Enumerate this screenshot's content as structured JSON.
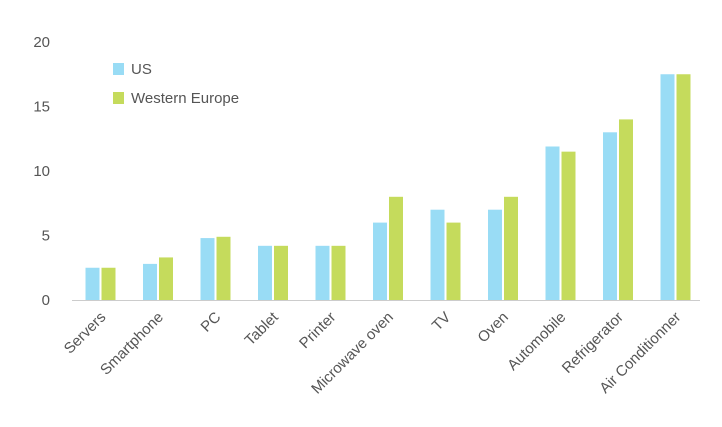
{
  "chart_data": {
    "type": "bar",
    "title": "",
    "xlabel": "",
    "ylabel": "",
    "categories": [
      "Servers",
      "Smartphone",
      "PC",
      "Tablet",
      "Printer",
      "Microwave oven",
      "TV",
      "Oven",
      "Automobile",
      "Refrigerator",
      "Air Conditionner"
    ],
    "series": [
      {
        "name": "US",
        "color": "#99dcf5",
        "values": [
          2.5,
          2.8,
          4.8,
          4.2,
          4.2,
          6.0,
          7.0,
          7.0,
          11.9,
          13.0,
          17.5
        ]
      },
      {
        "name": "Western Europe",
        "color": "#c5db5c",
        "values": [
          2.5,
          3.3,
          4.9,
          4.2,
          4.2,
          8.0,
          6.0,
          8.0,
          11.5,
          14.0,
          17.5
        ]
      }
    ],
    "ylim": [
      0,
      20
    ],
    "yticks": [
      0,
      5,
      10,
      15,
      20
    ],
    "grid": false,
    "legend": "top-left",
    "axis_color": "#cccccc"
  }
}
